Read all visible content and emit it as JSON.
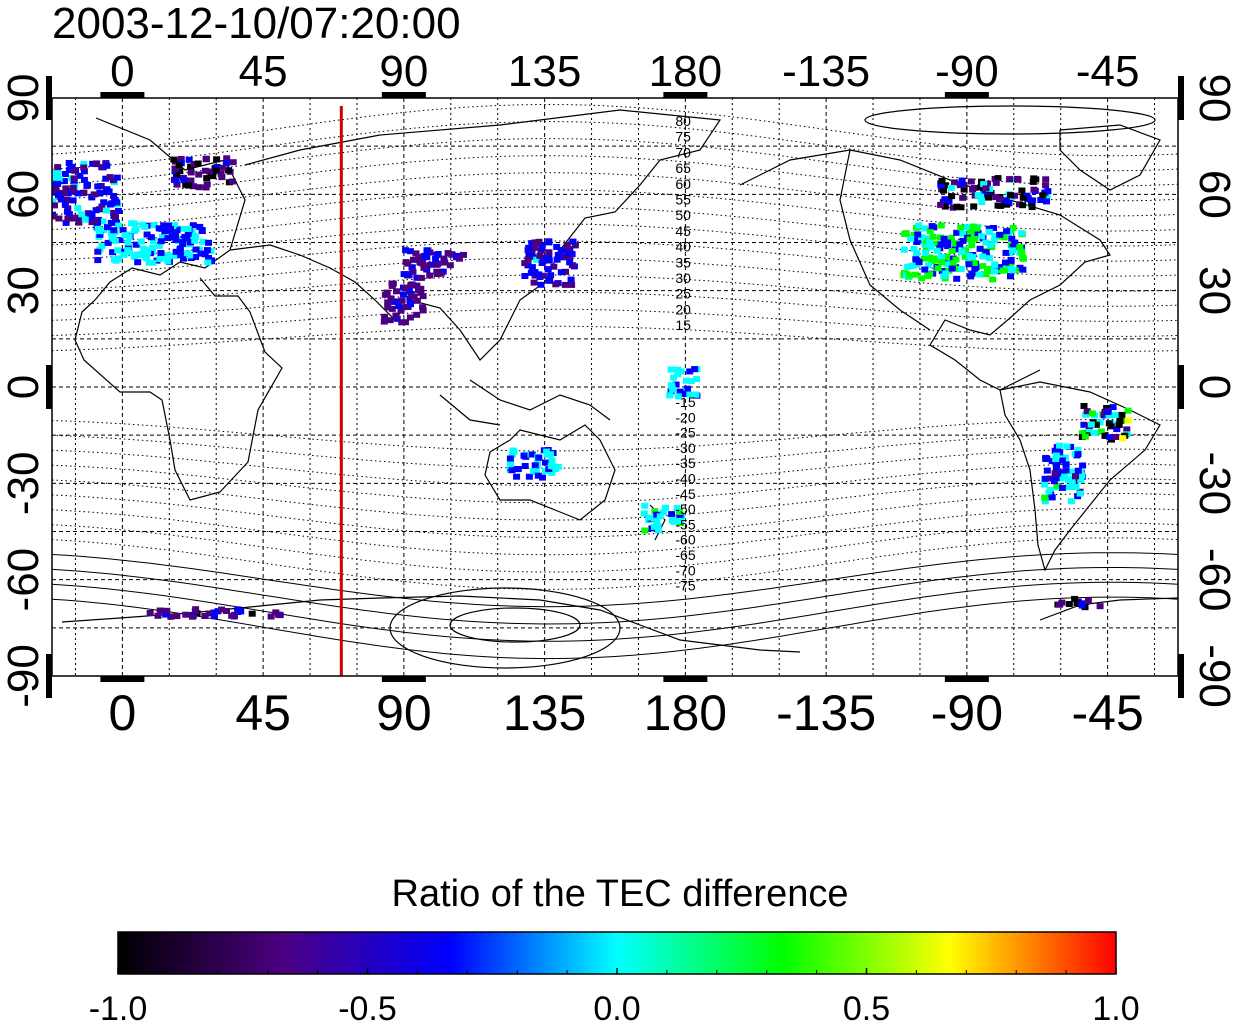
{
  "title": "2003-12-10/07:20:00",
  "map": {
    "top_axis_labels": [
      "0",
      "45",
      "90",
      "135",
      "180",
      "-135",
      "-90",
      "-45"
    ],
    "bottom_axis_labels": [
      "0",
      "45",
      "90",
      "135",
      "180",
      "-135",
      "-90",
      "-45"
    ],
    "left_axis_labels": [
      "90",
      "60",
      "30",
      "0",
      "-30",
      "-60",
      "-90"
    ],
    "right_axis_labels": [
      "90",
      "60",
      "30",
      "0",
      "-30",
      "-60",
      "-90"
    ],
    "contour_labels_north": [
      "80",
      "75",
      "70",
      "65",
      "60",
      "55",
      "50",
      "45",
      "40",
      "35",
      "30",
      "25",
      "20",
      "15"
    ],
    "contour_labels_south": [
      "-15",
      "-20",
      "-25",
      "-30",
      "-35",
      "-40",
      "-45",
      "-50",
      "-55",
      "-60",
      "-65",
      "-70",
      "-75"
    ],
    "marker_color": "#cc0000",
    "marker_longitude": 70
  },
  "colorbar": {
    "title": "Ratio of the TEC difference",
    "tick_labels": [
      "-1.0",
      "-0.5",
      "0.0",
      "0.5",
      "1.0"
    ],
    "range": [
      -1.0,
      1.0
    ],
    "colors": [
      "#000000",
      "#4b0082",
      "#0000ff",
      "#00ffff",
      "#00ff00",
      "#ffff00",
      "#ff0000"
    ]
  }
}
